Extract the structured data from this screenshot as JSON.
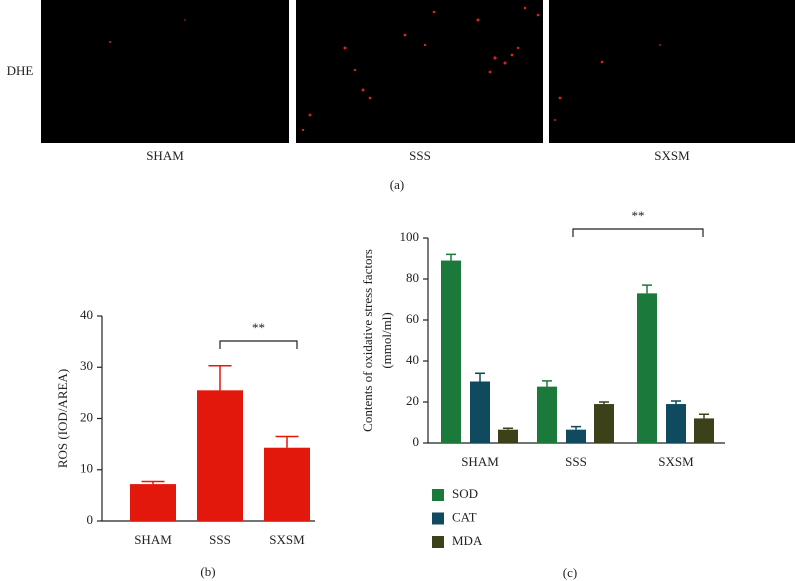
{
  "image_panel": {
    "row_label": "DHE",
    "columns": [
      "SHAM",
      "SSS",
      "SXSM"
    ],
    "caption": "(a)"
  },
  "chart_data": [
    {
      "type": "bar",
      "categories": [
        "SHAM",
        "SSS",
        "SXSM"
      ],
      "values": [
        7.2,
        25.5,
        14.3
      ],
      "errors": [
        0.5,
        4.8,
        2.2
      ],
      "color": "#e3180c",
      "ylabel": "ROS (IOD/AREA)",
      "ylim": [
        0,
        40
      ],
      "yticks": [
        0,
        10,
        20,
        30,
        40
      ],
      "annotation": "**",
      "caption": "(b)"
    },
    {
      "type": "grouped-bar",
      "categories": [
        "SHAM",
        "SSS",
        "SXSM"
      ],
      "series": [
        {
          "name": "SOD",
          "color": "#1b7a3b",
          "values": [
            89,
            27.5,
            73
          ],
          "errors": [
            3,
            2.8,
            4
          ]
        },
        {
          "name": "CAT",
          "color": "#0f4a5e",
          "values": [
            30,
            6.5,
            19
          ],
          "errors": [
            4,
            1.5,
            1.5
          ]
        },
        {
          "name": "MDA",
          "color": "#3c4119",
          "values": [
            6.5,
            19,
            12
          ],
          "errors": [
            0.7,
            1,
            2
          ]
        }
      ],
      "ylabel": [
        "Contents of oxidative stress factors",
        "(mmol/ml)"
      ],
      "ylim": [
        0,
        100
      ],
      "yticks": [
        0,
        20,
        40,
        60,
        80,
        100
      ],
      "annotation": "**",
      "caption": "(c)"
    }
  ]
}
